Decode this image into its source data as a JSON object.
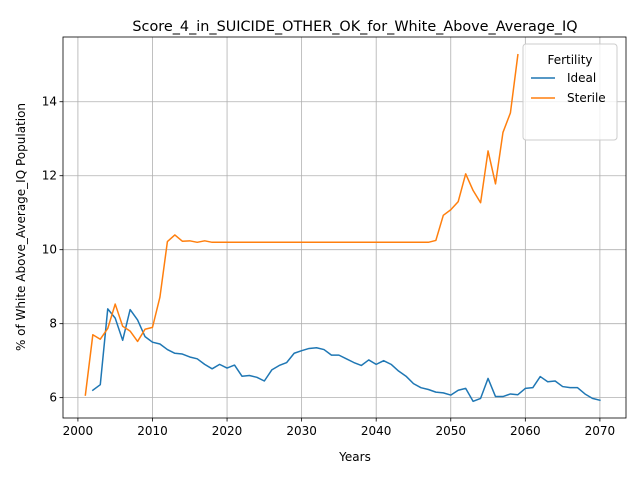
{
  "chart_data": {
    "type": "line",
    "title": "Score_4_in_SUICIDE_OTHER_OK_for_White_Above_Average_IQ",
    "xlabel": "Years",
    "ylabel": "% of White Above_Average_IQ Population",
    "xlim": [
      1998,
      2073.5
    ],
    "ylim": [
      5.45,
      15.75
    ],
    "xticks": [
      2000,
      2010,
      2020,
      2030,
      2040,
      2050,
      2060,
      2070
    ],
    "yticks": [
      6,
      8,
      10,
      12,
      14
    ],
    "grid": true,
    "legend": {
      "title": "Fertility",
      "placement": "top-right"
    },
    "series": [
      {
        "name": "Ideal",
        "color": "#1f77b4",
        "x": [
          2002,
          2003,
          2004,
          2005,
          2006,
          2007,
          2008,
          2009,
          2010,
          2011,
          2012,
          2013,
          2014,
          2015,
          2016,
          2017,
          2018,
          2019,
          2020,
          2021,
          2022,
          2023,
          2024,
          2025,
          2026,
          2027,
          2028,
          2029,
          2030,
          2031,
          2032,
          2033,
          2034,
          2035,
          2036,
          2037,
          2038,
          2039,
          2040,
          2041,
          2042,
          2043,
          2044,
          2045,
          2046,
          2047,
          2048,
          2049,
          2050,
          2051,
          2052,
          2053,
          2054,
          2055,
          2056,
          2057,
          2058,
          2059,
          2060,
          2061,
          2062,
          2063,
          2064,
          2065,
          2066,
          2067,
          2068,
          2069,
          2070
        ],
        "y": [
          6.2,
          6.35,
          8.4,
          8.15,
          7.55,
          8.38,
          8.1,
          7.65,
          7.5,
          7.45,
          7.3,
          7.2,
          7.18,
          7.1,
          7.05,
          6.9,
          6.78,
          6.9,
          6.8,
          6.88,
          6.58,
          6.6,
          6.55,
          6.45,
          6.75,
          6.87,
          6.95,
          7.2,
          7.27,
          7.33,
          7.35,
          7.3,
          7.15,
          7.15,
          7.05,
          6.95,
          6.87,
          7.02,
          6.9,
          7.0,
          6.9,
          6.72,
          6.58,
          6.38,
          6.27,
          6.22,
          6.15,
          6.13,
          6.07,
          6.2,
          6.25,
          5.9,
          5.98,
          6.52,
          6.03,
          6.03,
          6.1,
          6.08,
          6.25,
          6.27,
          6.57,
          6.43,
          6.45,
          6.3,
          6.27,
          6.27,
          6.1,
          5.98,
          5.93
        ]
      },
      {
        "name": "Sterile",
        "color": "#ff7f0e",
        "x": [
          2001,
          2002,
          2003,
          2004,
          2005,
          2006,
          2007,
          2008,
          2009,
          2010,
          2011,
          2012,
          2013,
          2014,
          2015,
          2016,
          2017,
          2018,
          2019,
          2020,
          2021,
          2022,
          2023,
          2024,
          2025,
          2026,
          2027,
          2028,
          2029,
          2030,
          2031,
          2032,
          2033,
          2034,
          2035,
          2036,
          2037,
          2038,
          2039,
          2040,
          2041,
          2042,
          2043,
          2044,
          2045,
          2046,
          2047,
          2048,
          2049,
          2050,
          2051,
          2052,
          2053,
          2054,
          2055,
          2056,
          2057,
          2058,
          2059
        ],
        "y": [
          6.07,
          7.7,
          7.58,
          7.87,
          8.53,
          7.93,
          7.8,
          7.52,
          7.85,
          7.9,
          8.72,
          10.22,
          10.4,
          10.23,
          10.24,
          10.2,
          10.24,
          10.2,
          10.2,
          10.2,
          10.2,
          10.2,
          10.2,
          10.2,
          10.2,
          10.2,
          10.2,
          10.2,
          10.2,
          10.2,
          10.2,
          10.2,
          10.2,
          10.2,
          10.2,
          10.2,
          10.2,
          10.2,
          10.2,
          10.2,
          10.2,
          10.2,
          10.2,
          10.2,
          10.2,
          10.2,
          10.2,
          10.25,
          10.93,
          11.08,
          11.3,
          12.05,
          11.6,
          11.27,
          12.67,
          11.78,
          13.17,
          13.7,
          15.27
        ]
      }
    ]
  }
}
